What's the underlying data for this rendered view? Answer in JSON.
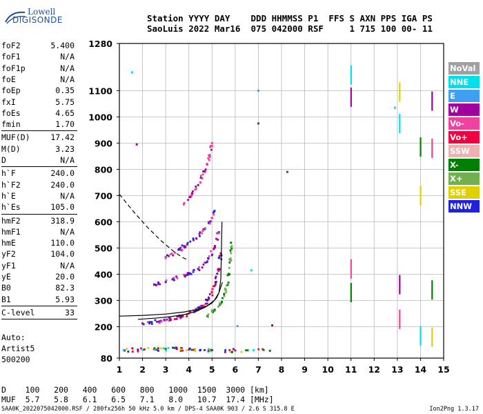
{
  "logo": {
    "line1": "Lowell",
    "line2": "DIGISONDE"
  },
  "header": {
    "labels": [
      "Station",
      "YYYY",
      "DAY",
      "DDD",
      "HHMMSS",
      "P1",
      "FFS",
      "S",
      "AXN",
      "PPS",
      "IGA",
      "PS"
    ],
    "values": [
      "SaoLuis",
      "2022",
      "Mar16",
      "075",
      "042000",
      "RSF",
      "",
      "1",
      "715",
      "100",
      "00-",
      "11"
    ]
  },
  "params": [
    {
      "label": "foF2",
      "value": "5.400"
    },
    {
      "label": "foF1",
      "value": "N/A"
    },
    {
      "label": "foF1p",
      "value": "N/A"
    },
    {
      "label": "foE",
      "value": "N/A"
    },
    {
      "label": "foEp",
      "value": "0.35"
    },
    {
      "label": "fxI",
      "value": "5.75"
    },
    {
      "label": "foEs",
      "value": "4.65"
    },
    {
      "label": "fmin",
      "value": "1.70"
    },
    {
      "label": "MUF(D)",
      "value": "17.42"
    },
    {
      "label": "M(D)",
      "value": "3.23"
    },
    {
      "label": "D",
      "value": "N/A"
    },
    {
      "label": "h`F",
      "value": "240.0"
    },
    {
      "label": "h`F2",
      "value": "240.0"
    },
    {
      "label": "h`E",
      "value": "N/A"
    },
    {
      "label": "h`Es",
      "value": "105.0"
    },
    {
      "label": "hmF2",
      "value": "318.9"
    },
    {
      "label": "hmF1",
      "value": "N/A"
    },
    {
      "label": "hmE",
      "value": "110.0"
    },
    {
      "label": "yF2",
      "value": "104.0"
    },
    {
      "label": "yF1",
      "value": "N/A"
    },
    {
      "label": "yE",
      "value": "20.0"
    },
    {
      "label": "B0",
      "value": "82.3"
    },
    {
      "label": "B1",
      "value": "5.93"
    },
    {
      "label": "C-level",
      "value": "33"
    }
  ],
  "auto": {
    "line1": "Auto:",
    "line2": "Artist5",
    "line3": "500200"
  },
  "legend": [
    {
      "name": "NoVal",
      "color": "#a0a0a0"
    },
    {
      "name": "NNE",
      "color": "#00e0e8"
    },
    {
      "name": "E",
      "color": "#40a0f0"
    },
    {
      "name": "W",
      "color": "#a000a0"
    },
    {
      "name": "Vo-",
      "color": "#f040a0"
    },
    {
      "name": "Vo+",
      "color": "#f00040"
    },
    {
      "name": "SSW",
      "color": "#f0b0b0"
    },
    {
      "name": "X-",
      "color": "#008000"
    },
    {
      "name": "X+",
      "color": "#70b050"
    },
    {
      "name": "SSE",
      "color": "#e0d000"
    },
    {
      "name": "NNW",
      "color": "#2020e0"
    }
  ],
  "dmuf": {
    "d_label": "D",
    "d_values": [
      "100",
      "200",
      "400",
      "600",
      "800",
      "1000",
      "1500",
      "3000"
    ],
    "d_unit": "[km]",
    "muf_label": "MUF",
    "muf_values": [
      "5.7",
      "5.8",
      "6.1",
      "6.5",
      "7.1",
      "8.0",
      "10.7",
      "17.4"
    ],
    "muf_unit": "[MHz]"
  },
  "footer": {
    "left": "SAA0K_2022075042000.RSF / 280fx256h 50 kHz 5.0 km / DPS-4 SAA0K 903 / 2.6 S 315.8 E",
    "right": "Ion2Png 1.3.17"
  },
  "chart_data": {
    "type": "scatter",
    "xlim": [
      1,
      15
    ],
    "ylim": [
      80,
      1280
    ],
    "xticks": [
      "1",
      "2",
      "3",
      "4",
      "5",
      "6",
      "7",
      "8",
      "9",
      "10",
      "11",
      "12",
      "13",
      "14",
      "15"
    ],
    "yticks": [
      {
        "value": 80,
        "label": "80"
      },
      {
        "value": 200,
        "label": "200"
      },
      {
        "value": 300,
        "label": "300"
      },
      {
        "value": 400,
        "label": "400"
      },
      {
        "value": 500,
        "label": "500"
      },
      {
        "value": 600,
        "label": "600"
      },
      {
        "value": 700,
        "label": "700"
      },
      {
        "value": 800,
        "label": "800"
      },
      {
        "value": 900,
        "label": "900"
      },
      {
        "value": 1000,
        "label": "1000"
      },
      {
        "value": 1100,
        "label": "1100"
      },
      {
        "value": 1280,
        "label": "1280"
      }
    ],
    "grid": true,
    "profile": [
      [
        1.8,
        228
      ],
      [
        2.5,
        232
      ],
      [
        3.2,
        238
      ],
      [
        3.8,
        246
      ],
      [
        4.3,
        258
      ],
      [
        4.7,
        274
      ],
      [
        5.0,
        290
      ],
      [
        5.2,
        310
      ],
      [
        5.3,
        330
      ],
      [
        5.38,
        380
      ],
      [
        5.4,
        460
      ],
      [
        5.43,
        600
      ]
    ],
    "x_trace": [
      [
        1.0,
        240
      ],
      [
        2.0,
        243
      ],
      [
        3.0,
        248
      ],
      [
        3.8,
        256
      ],
      [
        4.4,
        266
      ],
      [
        4.8,
        280
      ],
      [
        5.1,
        300
      ],
      [
        5.3,
        330
      ],
      [
        5.45,
        370
      ]
    ],
    "muf_curve": [
      [
        1.0,
        705
      ],
      [
        1.6,
        640
      ],
      [
        2.2,
        580
      ],
      [
        2.8,
        528
      ],
      [
        3.3,
        490
      ],
      [
        3.7,
        465
      ],
      [
        4.0,
        452
      ]
    ],
    "traces": [
      {
        "name": "F2 O-mode",
        "colors": [
          "#a000a0",
          "#f040a0",
          "#2020e0",
          "#f00040"
        ],
        "points": [
          [
            2.0,
            212
          ],
          [
            2.4,
            216
          ],
          [
            2.8,
            222
          ],
          [
            3.2,
            230
          ],
          [
            3.6,
            238
          ],
          [
            4.0,
            250
          ],
          [
            4.3,
            262
          ],
          [
            4.6,
            280
          ],
          [
            4.8,
            300
          ],
          [
            5.0,
            330
          ],
          [
            5.15,
            370
          ],
          [
            5.3,
            420
          ],
          [
            5.38,
            480
          ]
        ]
      },
      {
        "name": "F2 X-mode",
        "colors": [
          "#008000",
          "#70b050"
        ],
        "points": [
          [
            4.8,
            240
          ],
          [
            5.1,
            260
          ],
          [
            5.4,
            290
          ],
          [
            5.6,
            340
          ],
          [
            5.75,
            400
          ],
          [
            5.8,
            460
          ],
          [
            5.82,
            520
          ]
        ]
      },
      {
        "name": "2-hop",
        "colors": [
          "#a000a0",
          "#2020e0",
          "#f040a0"
        ],
        "points": [
          [
            2.5,
            360
          ],
          [
            3.0,
            370
          ],
          [
            3.5,
            385
          ],
          [
            4.0,
            400
          ],
          [
            4.4,
            420
          ],
          [
            4.8,
            450
          ],
          [
            5.1,
            500
          ],
          [
            5.3,
            560
          ]
        ]
      },
      {
        "name": "3-hop",
        "colors": [
          "#a000a0",
          "#f040a0",
          "#2020e0"
        ],
        "points": [
          [
            3.0,
            465
          ],
          [
            3.4,
            482
          ],
          [
            3.8,
            505
          ],
          [
            4.2,
            530
          ],
          [
            4.6,
            565
          ],
          [
            4.9,
            600
          ],
          [
            5.1,
            640
          ]
        ]
      },
      {
        "name": "4-hop",
        "colors": [
          "#a000a0",
          "#f040a0"
        ],
        "points": [
          [
            3.8,
            670
          ],
          [
            4.1,
            700
          ],
          [
            4.4,
            740
          ],
          [
            4.7,
            790
          ],
          [
            4.9,
            850
          ],
          [
            5.0,
            900
          ]
        ]
      },
      {
        "name": "Es",
        "colors": [
          "#a000a0",
          "#2020e0",
          "#f00040",
          "#008000",
          "#e0d000",
          "#00e0e8"
        ],
        "points": [
          [
            1.2,
            110
          ],
          [
            1.8,
            112
          ],
          [
            2.5,
            114
          ],
          [
            3.0,
            115
          ],
          [
            3.5,
            115
          ],
          [
            4.0,
            113
          ],
          [
            4.5,
            111
          ],
          [
            5.0,
            110
          ],
          [
            6.0,
            109
          ],
          [
            7.5,
            108
          ]
        ]
      },
      {
        "name": "sparse",
        "colors": [
          "#00e0e8",
          "#a000a0",
          "#40a0f0",
          "#008000"
        ],
        "points": [
          [
            1.55,
            1170
          ],
          [
            1.75,
            895
          ],
          [
            7.0,
            1100
          ],
          [
            7.0,
            975
          ],
          [
            6.7,
            415
          ],
          [
            7.6,
            205
          ],
          [
            6.1,
            202
          ],
          [
            8.25,
            790
          ],
          [
            12.9,
            1035
          ]
        ]
      },
      {
        "name": "verticals",
        "colors": [
          "#00e0e8",
          "#a000a0",
          "#f040a0",
          "#008000",
          "#e0d000"
        ],
        "points": [
          [
            11.0,
            1160
          ],
          [
            11.0,
            1075
          ],
          [
            11.0,
            420
          ],
          [
            11.0,
            330
          ],
          [
            13.1,
            1095
          ],
          [
            13.1,
            975
          ],
          [
            13.1,
            360
          ],
          [
            13.1,
            228
          ],
          [
            14.0,
            885
          ],
          [
            14.0,
            700
          ],
          [
            14.0,
            165
          ],
          [
            14.5,
            1060
          ],
          [
            14.5,
            880
          ],
          [
            14.5,
            340
          ],
          [
            14.5,
            160
          ]
        ]
      }
    ]
  }
}
